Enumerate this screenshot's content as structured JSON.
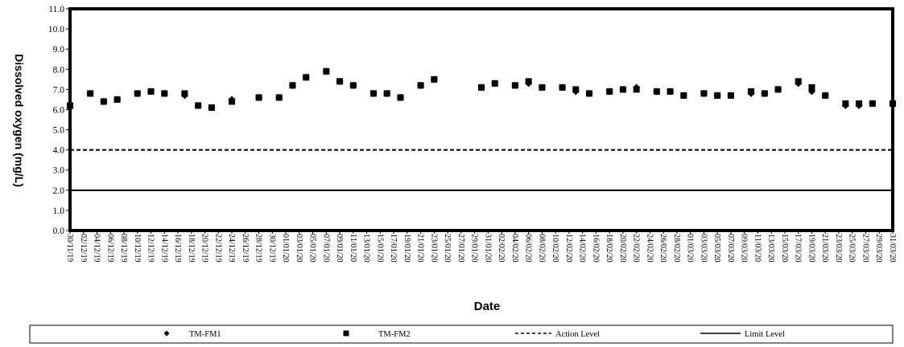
{
  "chart_data": {
    "type": "scatter",
    "title": "",
    "xlabel": "Date",
    "ylabel": "Dissolved oxygen (mg/L)",
    "ylim": [
      0.0,
      11.0
    ],
    "yticks": [
      "0.0",
      "1.0",
      "2.0",
      "3.0",
      "4.0",
      "5.0",
      "6.0",
      "7.0",
      "8.0",
      "9.0",
      "10.0",
      "11.0"
    ],
    "xlim": [
      "30/11/19",
      "31/03/20"
    ],
    "xticks": [
      "30/11/19",
      "02/12/19",
      "04/12/19",
      "06/12/19",
      "08/12/19",
      "10/12/19",
      "12/12/19",
      "14/12/19",
      "16/12/19",
      "18/12/19",
      "20/12/19",
      "22/12/19",
      "24/12/19",
      "26/12/19",
      "28/12/19",
      "30/12/19",
      "01/01/20",
      "03/01/20",
      "05/01/20",
      "07/01/20",
      "09/01/20",
      "11/01/20",
      "13/01/20",
      "15/01/20",
      "17/01/20",
      "19/01/20",
      "21/01/20",
      "23/01/20",
      "25/01/20",
      "27/01/20",
      "29/01/20",
      "31/01/20",
      "02/02/20",
      "04/02/20",
      "06/02/20",
      "08/02/20",
      "10/02/20",
      "12/02/20",
      "14/02/20",
      "16/02/20",
      "18/02/20",
      "20/02/20",
      "22/02/20",
      "24/02/20",
      "26/02/20",
      "28/02/20",
      "01/03/20",
      "03/03/20",
      "05/03/20",
      "07/03/20",
      "09/03/20",
      "11/03/20",
      "13/03/20",
      "15/03/20",
      "17/03/20",
      "19/03/20",
      "21/03/20",
      "23/03/20",
      "25/03/20",
      "27/03/20",
      "29/03/20",
      "31/03/20"
    ],
    "grid": false,
    "legend_position": "bottom",
    "series": [
      {
        "name": "TM-FM1",
        "marker": "diamond",
        "color": "#000000",
        "points": [
          [
            "30/11/19",
            6.1
          ],
          [
            "03/12/19",
            6.8
          ],
          [
            "05/12/19",
            6.4
          ],
          [
            "07/12/19",
            6.5
          ],
          [
            "10/12/19",
            6.8
          ],
          [
            "12/12/19",
            6.9
          ],
          [
            "14/12/19",
            6.8
          ],
          [
            "17/12/19",
            6.7
          ],
          [
            "19/12/19",
            6.2
          ],
          [
            "21/12/19",
            6.1
          ],
          [
            "24/12/19",
            6.5
          ],
          [
            "28/12/19",
            6.6
          ],
          [
            "31/12/19",
            6.6
          ],
          [
            "02/01/20",
            7.2
          ],
          [
            "04/01/20",
            7.6
          ],
          [
            "07/01/20",
            7.9
          ],
          [
            "09/01/20",
            7.4
          ],
          [
            "11/01/20",
            7.2
          ],
          [
            "14/01/20",
            6.8
          ],
          [
            "16/01/20",
            6.8
          ],
          [
            "18/01/20",
            6.6
          ],
          [
            "21/01/20",
            7.2
          ],
          [
            "23/01/20",
            7.5
          ],
          [
            "30/01/20",
            7.1
          ],
          [
            "01/02/20",
            7.3
          ],
          [
            "04/02/20",
            7.2
          ],
          [
            "06/02/20",
            7.3
          ],
          [
            "08/02/20",
            7.1
          ],
          [
            "11/02/20",
            7.1
          ],
          [
            "13/02/20",
            6.9
          ],
          [
            "15/02/20",
            6.8
          ],
          [
            "18/02/20",
            6.9
          ],
          [
            "20/02/20",
            7.0
          ],
          [
            "22/02/20",
            7.1
          ],
          [
            "25/02/20",
            6.9
          ],
          [
            "27/02/20",
            6.9
          ],
          [
            "29/02/20",
            6.7
          ],
          [
            "03/03/20",
            6.8
          ],
          [
            "05/03/20",
            6.7
          ],
          [
            "07/03/20",
            6.7
          ],
          [
            "10/03/20",
            6.8
          ],
          [
            "12/03/20",
            6.8
          ],
          [
            "14/03/20",
            7.0
          ],
          [
            "17/03/20",
            7.3
          ],
          [
            "19/03/20",
            6.9
          ],
          [
            "21/03/20",
            6.7
          ],
          [
            "24/03/20",
            6.2
          ],
          [
            "26/03/20",
            6.2
          ],
          [
            "28/03/20",
            6.3
          ],
          [
            "31/03/20",
            6.3
          ]
        ]
      },
      {
        "name": "TM-FM2",
        "marker": "square",
        "color": "#000000",
        "points": [
          [
            "30/11/19",
            6.2
          ],
          [
            "03/12/19",
            6.8
          ],
          [
            "05/12/19",
            6.4
          ],
          [
            "07/12/19",
            6.5
          ],
          [
            "10/12/19",
            6.8
          ],
          [
            "12/12/19",
            6.9
          ],
          [
            "14/12/19",
            6.8
          ],
          [
            "17/12/19",
            6.8
          ],
          [
            "19/12/19",
            6.2
          ],
          [
            "21/12/19",
            6.1
          ],
          [
            "24/12/19",
            6.4
          ],
          [
            "28/12/19",
            6.6
          ],
          [
            "31/12/19",
            6.6
          ],
          [
            "02/01/20",
            7.2
          ],
          [
            "04/01/20",
            7.6
          ],
          [
            "07/01/20",
            7.9
          ],
          [
            "09/01/20",
            7.4
          ],
          [
            "11/01/20",
            7.2
          ],
          [
            "14/01/20",
            6.8
          ],
          [
            "16/01/20",
            6.8
          ],
          [
            "18/01/20",
            6.6
          ],
          [
            "21/01/20",
            7.2
          ],
          [
            "23/01/20",
            7.5
          ],
          [
            "30/01/20",
            7.1
          ],
          [
            "01/02/20",
            7.3
          ],
          [
            "04/02/20",
            7.2
          ],
          [
            "06/02/20",
            7.4
          ],
          [
            "08/02/20",
            7.1
          ],
          [
            "11/02/20",
            7.1
          ],
          [
            "13/02/20",
            7.0
          ],
          [
            "15/02/20",
            6.8
          ],
          [
            "18/02/20",
            6.9
          ],
          [
            "20/02/20",
            7.0
          ],
          [
            "22/02/20",
            7.0
          ],
          [
            "25/02/20",
            6.9
          ],
          [
            "27/02/20",
            6.9
          ],
          [
            "29/02/20",
            6.7
          ],
          [
            "03/03/20",
            6.8
          ],
          [
            "05/03/20",
            6.7
          ],
          [
            "07/03/20",
            6.7
          ],
          [
            "10/03/20",
            6.9
          ],
          [
            "12/03/20",
            6.8
          ],
          [
            "14/03/20",
            7.0
          ],
          [
            "17/03/20",
            7.4
          ],
          [
            "19/03/20",
            7.1
          ],
          [
            "21/03/20",
            6.7
          ],
          [
            "24/03/20",
            6.3
          ],
          [
            "26/03/20",
            6.3
          ],
          [
            "28/03/20",
            6.3
          ],
          [
            "31/03/20",
            6.3
          ]
        ]
      },
      {
        "name": "Action Level",
        "style": "dashed",
        "color": "#000000",
        "value": 4.0
      },
      {
        "name": "Limit Level",
        "style": "solid",
        "color": "#000000",
        "value": 2.0
      }
    ]
  }
}
